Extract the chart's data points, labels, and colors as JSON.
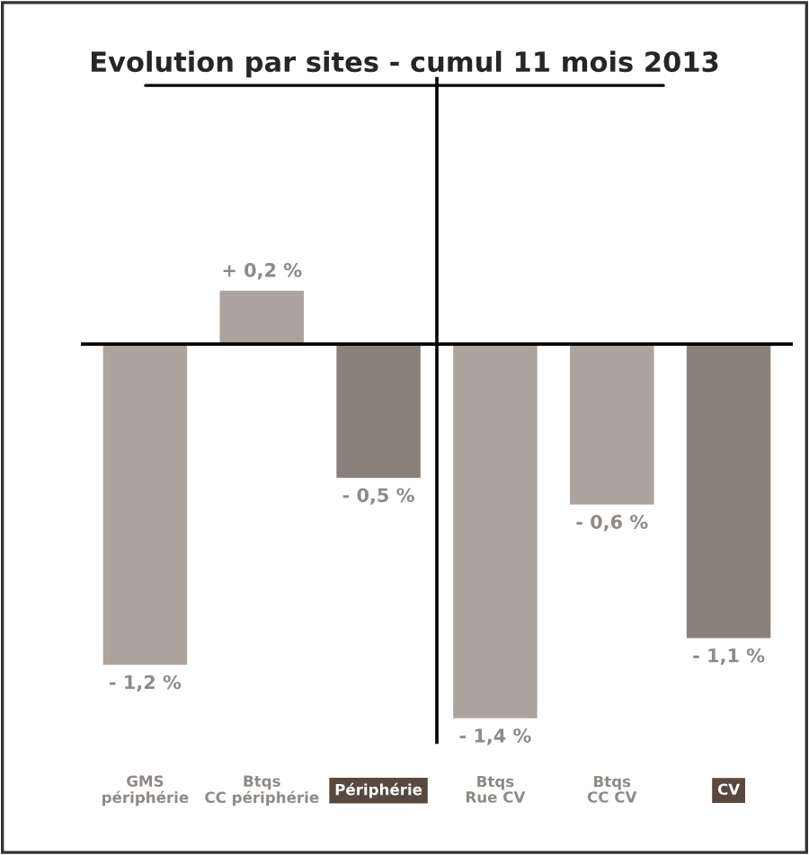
{
  "chart_data": {
    "type": "bar",
    "title": "Evolution par sites - cumul 11 mois 2013",
    "categories": [
      "GMS\npériphérie",
      "Btqs\nCC périphérie",
      "Périphérie",
      "Btqs\nRue CV",
      "Btqs\nCC CV",
      "CV"
    ],
    "values": [
      -1.2,
      0.2,
      -0.5,
      -1.4,
      -0.6,
      -1.1
    ],
    "colors": [
      "#aca39f",
      "#aca39f",
      "#8b817b",
      "#aca39f",
      "#aca39f",
      "#8b817b"
    ],
    "value_labels": [
      "- 1,2 %",
      "+ 0,2 %",
      "- 0,5 %",
      "- 1,4 %",
      "- 0,6 %",
      "- 1,1 %"
    ],
    "data_labels": false
  }
}
